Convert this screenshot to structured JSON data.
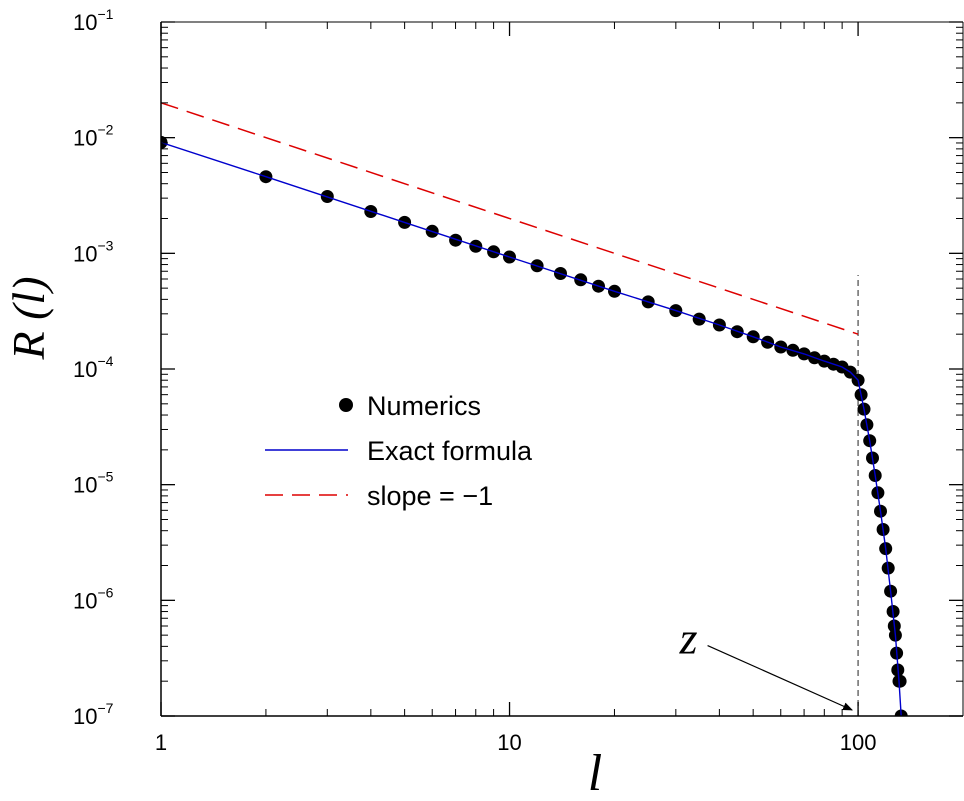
{
  "chart_data": {
    "type": "scatter",
    "xlabel": "l",
    "ylabel": "R (l)",
    "xscale": "log",
    "yscale": "log",
    "xlim": [
      1,
      200
    ],
    "ylim": [
      1e-07,
      0.1
    ],
    "x_ticks": [
      {
        "value": 1,
        "label": "1"
      },
      {
        "value": 10,
        "label": "10"
      },
      {
        "value": 100,
        "label": "100"
      }
    ],
    "y_ticks": [
      {
        "value": 1e-07,
        "base": "10",
        "exp": "−7"
      },
      {
        "value": 1e-06,
        "base": "10",
        "exp": "−6"
      },
      {
        "value": 1e-05,
        "base": "10",
        "exp": "−5"
      },
      {
        "value": 0.0001,
        "base": "10",
        "exp": "−4"
      },
      {
        "value": 0.001,
        "base": "10",
        "exp": "−3"
      },
      {
        "value": 0.01,
        "base": "10",
        "exp": "−2"
      },
      {
        "value": 0.1,
        "base": "10",
        "exp": "−1"
      }
    ],
    "grid": false,
    "legend_position": "center-left",
    "series": [
      {
        "name": "Numerics",
        "kind": "markers",
        "color": "#000000",
        "points": [
          [
            1,
            0.0091
          ],
          [
            2,
            0.0046
          ],
          [
            3,
            0.0031
          ],
          [
            4,
            0.0023
          ],
          [
            5,
            0.00185
          ],
          [
            6,
            0.00155
          ],
          [
            7,
            0.0013
          ],
          [
            8,
            0.00115
          ],
          [
            9,
            0.00103
          ],
          [
            10,
            0.00093
          ],
          [
            12,
            0.00078
          ],
          [
            14,
            0.00067
          ],
          [
            16,
            0.00059
          ],
          [
            18,
            0.00052
          ],
          [
            20,
            0.00047
          ],
          [
            25,
            0.00038
          ],
          [
            30,
            0.00032
          ],
          [
            35,
            0.00027
          ],
          [
            40,
            0.00024
          ],
          [
            45,
            0.00021
          ],
          [
            50,
            0.00019
          ],
          [
            55,
            0.00017
          ],
          [
            60,
            0.000155
          ],
          [
            65,
            0.000145
          ],
          [
            70,
            0.000135
          ],
          [
            75,
            0.000125
          ],
          [
            80,
            0.000117
          ],
          [
            85,
            0.00011
          ],
          [
            90,
            0.000104
          ],
          [
            95,
            9.4e-05
          ],
          [
            100,
            8e-05
          ],
          [
            102,
            6e-05
          ],
          [
            104,
            4.5e-05
          ],
          [
            106,
            3.3e-05
          ],
          [
            108,
            2.4e-05
          ],
          [
            110,
            1.7e-05
          ],
          [
            112,
            1.2e-05
          ],
          [
            114,
            8.5e-06
          ],
          [
            116,
            5.9e-06
          ],
          [
            118,
            4.1e-06
          ],
          [
            120,
            2.8e-06
          ],
          [
            122,
            1.9e-06
          ],
          [
            124,
            1.2e-06
          ],
          [
            126,
            8e-07
          ],
          [
            127,
            6e-07
          ],
          [
            128,
            5e-07
          ],
          [
            129,
            3.5e-07
          ],
          [
            130,
            2.5e-07
          ],
          [
            131,
            2e-07
          ],
          [
            132,
            2e-07
          ],
          [
            133,
            1e-07
          ]
        ]
      },
      {
        "name": "Exact formula",
        "kind": "line",
        "color": "#0000cc",
        "points": [
          [
            1,
            0.0091
          ],
          [
            2,
            0.0046
          ],
          [
            5,
            0.00185
          ],
          [
            10,
            0.00093
          ],
          [
            20,
            0.00047
          ],
          [
            30,
            0.00032
          ],
          [
            40,
            0.00024
          ],
          [
            50,
            0.00019
          ],
          [
            60,
            0.000155
          ],
          [
            70,
            0.000135
          ],
          [
            80,
            0.000117
          ],
          [
            90,
            0.000104
          ],
          [
            95,
            9.4e-05
          ],
          [
            100,
            8e-05
          ],
          [
            104,
            4.5e-05
          ],
          [
            108,
            2.4e-05
          ],
          [
            112,
            1.2e-05
          ],
          [
            116,
            5.9e-06
          ],
          [
            120,
            2.8e-06
          ],
          [
            124,
            1.2e-06
          ],
          [
            128,
            5e-07
          ],
          [
            131,
            2e-07
          ],
          [
            133,
            1e-07
          ]
        ]
      },
      {
        "name": "slope = −1",
        "kind": "dashed",
        "color": "#dd0000",
        "points": [
          [
            1,
            0.02
          ],
          [
            100,
            0.0002
          ]
        ]
      }
    ],
    "annotations": [
      {
        "kind": "vertical-dashed-line",
        "x": 100,
        "y_from": 1e-07,
        "y_to": 0.00065,
        "color": "#555555"
      },
      {
        "kind": "arrow-label",
        "text": "z",
        "target": [
          100,
          1e-07
        ],
        "from": [
          37,
          6.3e-07
        ]
      }
    ]
  }
}
